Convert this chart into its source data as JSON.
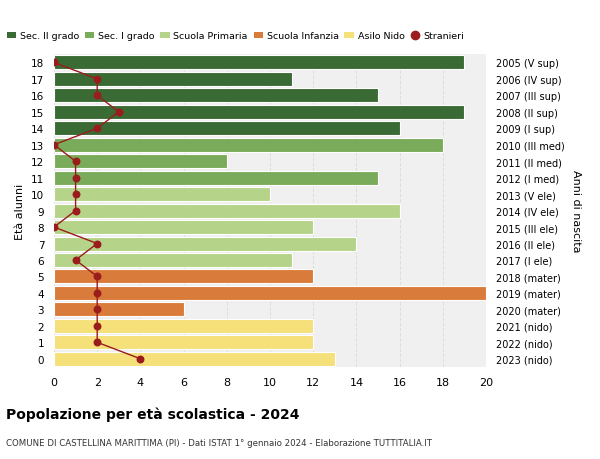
{
  "ages": [
    18,
    17,
    16,
    15,
    14,
    13,
    12,
    11,
    10,
    9,
    8,
    7,
    6,
    5,
    4,
    3,
    2,
    1,
    0
  ],
  "years": [
    "2005 (V sup)",
    "2006 (IV sup)",
    "2007 (III sup)",
    "2008 (II sup)",
    "2009 (I sup)",
    "2010 (III med)",
    "2011 (II med)",
    "2012 (I med)",
    "2013 (V ele)",
    "2014 (IV ele)",
    "2015 (III ele)",
    "2016 (II ele)",
    "2017 (I ele)",
    "2018 (mater)",
    "2019 (mater)",
    "2020 (mater)",
    "2021 (nido)",
    "2022 (nido)",
    "2023 (nido)"
  ],
  "values": [
    19,
    11,
    15,
    19,
    16,
    18,
    8,
    15,
    10,
    16,
    12,
    14,
    11,
    12,
    20,
    6,
    12,
    12,
    13
  ],
  "stranieri": [
    0,
    2,
    2,
    3,
    2,
    0,
    1,
    1,
    1,
    1,
    0,
    2,
    1,
    2,
    2,
    2,
    2,
    2,
    4
  ],
  "bar_colors": [
    "#3a6b35",
    "#3a6b35",
    "#3a6b35",
    "#3a6b35",
    "#3a6b35",
    "#7aab5a",
    "#7aab5a",
    "#7aab5a",
    "#b5d48a",
    "#b5d48a",
    "#b5d48a",
    "#b5d48a",
    "#b5d48a",
    "#d97b3a",
    "#d97b3a",
    "#d97b3a",
    "#f5e07a",
    "#f5e07a",
    "#f5e07a"
  ],
  "legend_labels": [
    "Sec. II grado",
    "Sec. I grado",
    "Scuola Primaria",
    "Scuola Infanzia",
    "Asilo Nido",
    "Stranieri"
  ],
  "legend_colors": [
    "#3a6b35",
    "#7aab5a",
    "#b5d48a",
    "#d97b3a",
    "#f5e07a",
    "#9b1c1c"
  ],
  "stranieri_color": "#9b1c1c",
  "ylabel_left": "Età alunni",
  "ylabel_right": "Anni di nascita",
  "title": "Popolazione per età scolastica - 2024",
  "subtitle": "COMUNE DI CASTELLINA MARITTIMA (PI) - Dati ISTAT 1° gennaio 2024 - Elaborazione TUTTITALIA.IT",
  "xlim": [
    0,
    20
  ],
  "bg_color": "#ffffff",
  "plot_bg": "#f0f0f0",
  "grid_color": "#dddddd"
}
